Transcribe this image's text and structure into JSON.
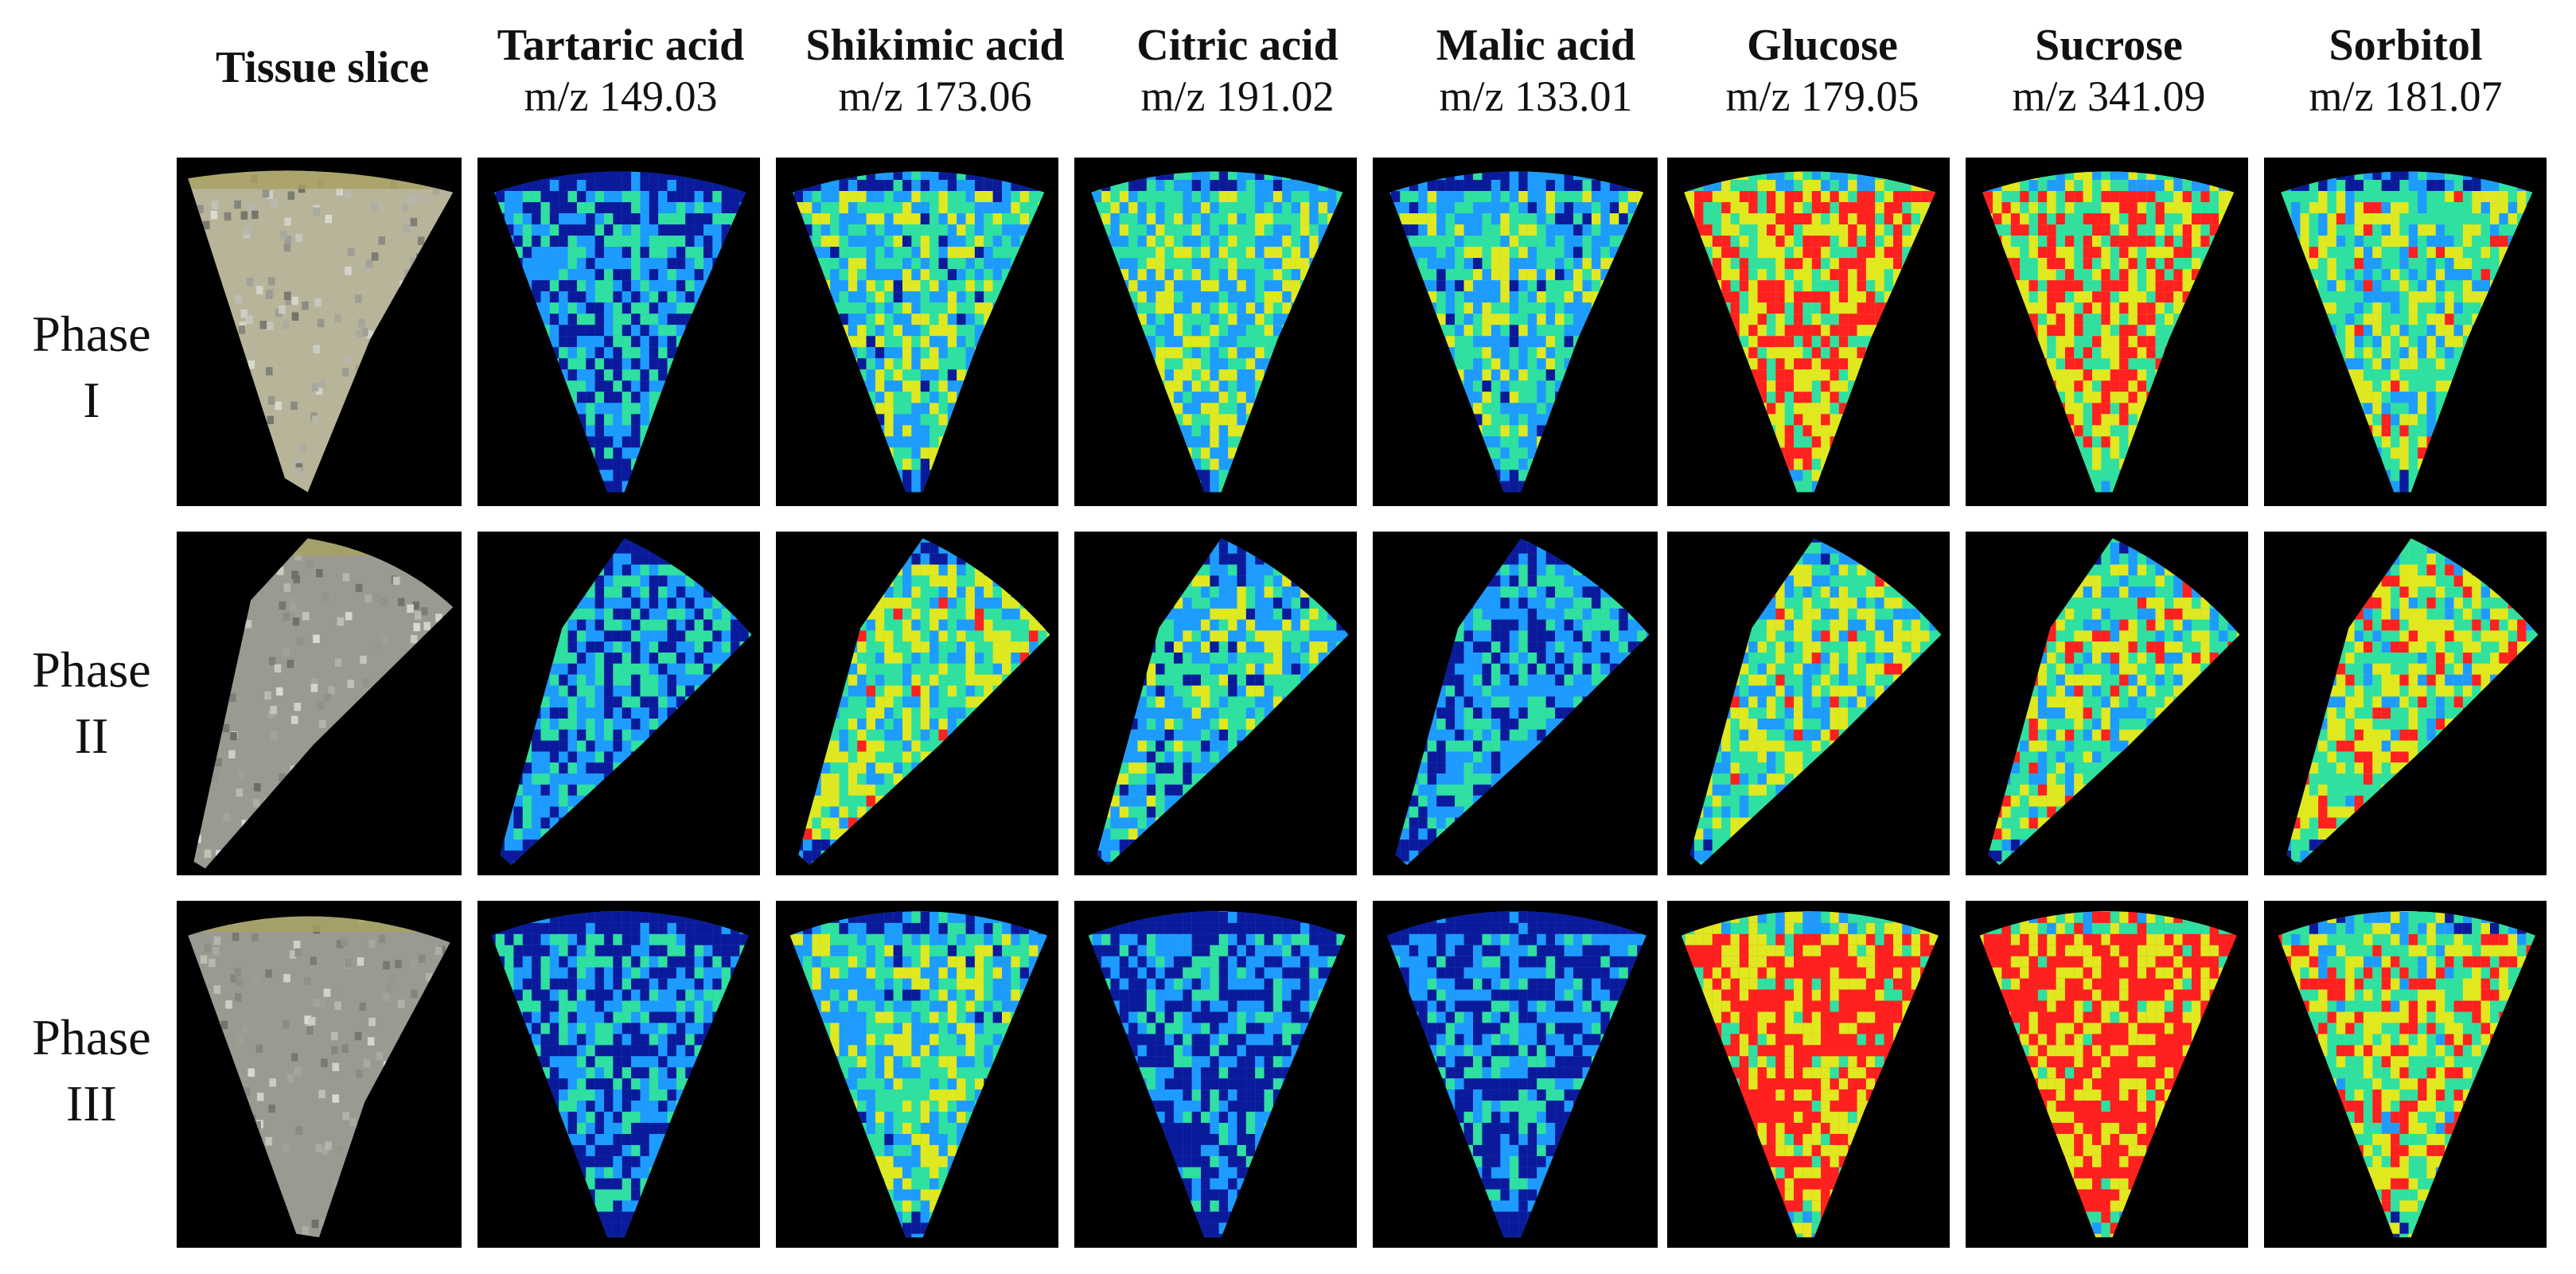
{
  "columns": [
    {
      "name": "Tissue slice",
      "mz": ""
    },
    {
      "name": "Tartaric acid",
      "mz": "m/z 149.03"
    },
    {
      "name": "Shikimic acid",
      "mz": "m/z 173.06"
    },
    {
      "name": "Citric acid",
      "mz": "m/z 191.02"
    },
    {
      "name": "Malic acid",
      "mz": "m/z 133.01"
    },
    {
      "name": "Glucose",
      "mz": "m/z 179.05"
    },
    {
      "name": "Sucrose",
      "mz": "m/z 341.09"
    },
    {
      "name": "Sorbitol",
      "mz": "m/z 181.07"
    }
  ],
  "rows": [
    {
      "line1": "Phase",
      "line2": "I"
    },
    {
      "line1": "Phase",
      "line2": "II"
    },
    {
      "line1": "Phase",
      "line2": "III"
    }
  ],
  "colors": {
    "background": "#000000",
    "tissue_gray": "#9a9a92",
    "tissue_rind": "#a8a060",
    "low": "#0a1a9a",
    "mid_low": "#1e9bff",
    "mid": "#2fe0a0",
    "mid_high": "#e0e820",
    "high": "#ff2020"
  },
  "intensity_levels": {
    "tartaric": [
      0.28,
      0.3,
      0.26
    ],
    "shikimic": [
      0.45,
      0.55,
      0.45
    ],
    "citric": [
      0.48,
      0.42,
      0.22
    ],
    "malic": [
      0.44,
      0.3,
      0.22
    ],
    "glucose": [
      0.75,
      0.55,
      0.82
    ],
    "sucrose": [
      0.72,
      0.58,
      0.86
    ],
    "sorbitol": [
      0.55,
      0.62,
      0.65
    ]
  }
}
